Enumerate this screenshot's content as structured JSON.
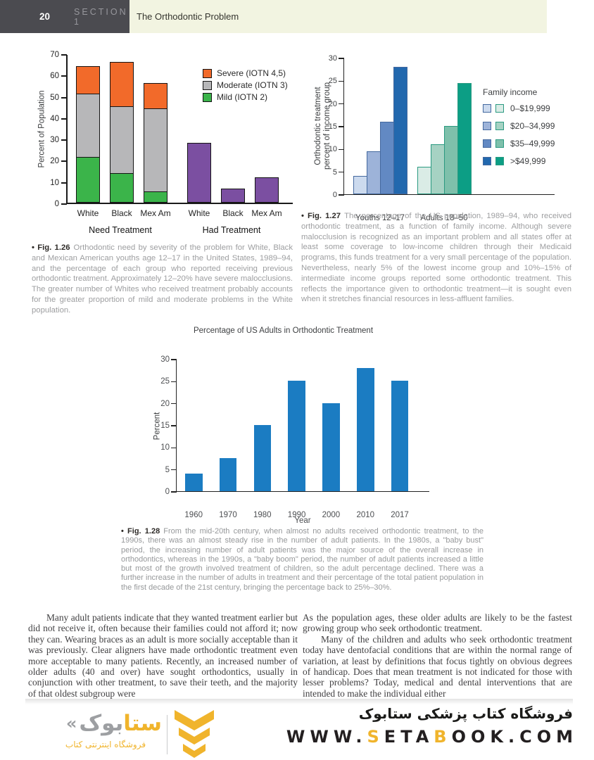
{
  "header": {
    "page_number": "20",
    "section_label": "SECTION 1",
    "section_title": "The Orthodontic Problem"
  },
  "chart_data": {
    "fig126": {
      "type": "bar",
      "subtype": "stacked",
      "ylabel": "Percent of Population",
      "ylim": [
        0,
        70
      ],
      "yticks": [
        0,
        10,
        20,
        30,
        40,
        50,
        60,
        70
      ],
      "categories": [
        "White",
        "Black",
        "Mex Am",
        "White",
        "Black",
        "Mex Am"
      ],
      "group_labels": [
        "Need Treatment",
        "Had Treatment"
      ],
      "colors": {
        "severe": "#f26a2a",
        "moderate": "#b7b7b9",
        "mild": "#3bb44a",
        "had_treatment": "#7b4fa1",
        "outline": "#141414"
      },
      "legend": [
        {
          "label": "Severe (IOTN 4,5)",
          "color": "#f26a2a"
        },
        {
          "label": "Moderate (IOTN 3)",
          "color": "#b7b7b9"
        },
        {
          "label": "Mild (IOTN 2)",
          "color": "#3bb44a"
        }
      ],
      "bars": [
        {
          "category": "White",
          "segments": [
            {
              "value": 21,
              "color": "#3bb44a"
            },
            {
              "value": 30,
              "color": "#b7b7b9"
            },
            {
              "value": 13,
              "color": "#f26a2a"
            }
          ]
        },
        {
          "category": "Black",
          "segments": [
            {
              "value": 13.5,
              "color": "#3bb44a"
            },
            {
              "value": 31.5,
              "color": "#b7b7b9"
            },
            {
              "value": 21,
              "color": "#f26a2a"
            }
          ]
        },
        {
          "category": "Mex Am",
          "segments": [
            {
              "value": 5,
              "color": "#3bb44a"
            },
            {
              "value": 39,
              "color": "#b7b7b9"
            },
            {
              "value": 12,
              "color": "#f26a2a"
            }
          ]
        },
        {
          "category": "White",
          "segments": [
            {
              "value": 28,
              "color": "#7b4fa1"
            }
          ]
        },
        {
          "category": "Black",
          "segments": [
            {
              "value": 6.5,
              "color": "#7b4fa1"
            }
          ]
        },
        {
          "category": "Mex Am",
          "segments": [
            {
              "value": 12,
              "color": "#7b4fa1"
            }
          ]
        }
      ]
    },
    "fig127": {
      "type": "bar",
      "subtype": "grouped",
      "ylabel_line1": "Orthodontic treatment",
      "ylabel_line2": "percent of income group",
      "ylim": [
        0,
        30
      ],
      "yticks": [
        0,
        5,
        10,
        15,
        20,
        25,
        30
      ],
      "legend_title": "Family income",
      "income_labels": [
        "0–$19,999",
        "$20–34,999",
        "$35–49,999",
        ">$49,999"
      ],
      "groups": [
        {
          "label": "Youths 12–17",
          "values": [
            4,
            9.5,
            16,
            28
          ],
          "colors": [
            "#ccdaee",
            "#9db3d9",
            "#6289c3",
            "#2268ae"
          ],
          "outline": "#44699f"
        },
        {
          "label": "Adults 18–50",
          "values": [
            6,
            11,
            15,
            24.5
          ],
          "colors": [
            "#daece6",
            "#a6d2c3",
            "#7ec0ab",
            "#0c9e85"
          ],
          "outline": "#2a9a81"
        }
      ]
    },
    "fig128": {
      "type": "bar",
      "title": "Percentage of US Adults in Orthodontic Treatment",
      "xlabel": "Year",
      "ylabel": "Percent",
      "ylim": [
        0,
        30
      ],
      "yticks": [
        0,
        5,
        10,
        15,
        20,
        25,
        30
      ],
      "categories": [
        "1960",
        "1970",
        "1980",
        "1990",
        "2000",
        "2010",
        "2017"
      ],
      "values": [
        4,
        7.5,
        15,
        25,
        20,
        28,
        25
      ],
      "bar_color": "#1b7cc2"
    }
  },
  "captions": {
    "fig126": {
      "label": "• Fig. 1.26",
      "text": "Orthodontic need by severity of the problem for White, Black and Mexican American youths age 12–17 in the United States, 1989–94, and the percentage of each group who reported receiving previous orthodontic treatment. Approximately 12–20% have severe malocclusions. The greater number of Whites who received treatment probably accounts for the greater proportion of mild and moderate problems in the White population."
    },
    "fig127": {
      "label": "• Fig. 1.27",
      "text": "The percentage of the US population, 1989–94, who received orthodontic treatment, as a function of family income. Although severe malocclusion is recognized as an important problem and all states offer at least some coverage to low-income children through their Medicaid programs, this funds treatment for a very small percentage of the population. Nevertheless, nearly 5% of the lowest income group and 10%–15% of intermediate income groups reported some orthodontic treatment. This reflects the importance given to orthodontic treatment—it is sought even when it stretches financial resources in less-affluent families."
    },
    "fig128": {
      "label": "• Fig. 1.28",
      "text": "From the mid-20th century, when almost no adults received orthodontic treatment, to the 1990s, there was an almost steady rise in the number of adult patients. In the 1980s, a \"baby bust\" period, the increasing number of adult patients was the major source of the overall increase in orthodontics, whereas in the 1990s, a \"baby boom\" period, the number of adult patients increased a little but most of the growth involved treatment of children, so the adult percentage declined. There was a further increase in the number of adults in treatment and their percentage of the total patient population in the first decade of the 21st century, bringing the percentage back to 25%–30%."
    }
  },
  "body": {
    "left_paragraph": "Many adult patients indicate that they wanted treatment earlier but did not receive it, often because their families could not afford it; now they can. Wearing braces as an adult is more socially acceptable than it was previously. Clear aligners have made orthodontic treatment even more acceptable to many patients. Recently, an increased number of older adults (40 and over) have sought orthodontics, usually in conjunction with other treatment, to save their teeth, and the majority of that oldest subgroup were",
    "right_paragraph_1": "As the population ages, these older adults are likely to be the fastest growing group who seek orthodontic treatment.",
    "right_paragraph_2": "Many of the children and adults who seek orthodontic treatment today have dentofacial conditions that are within the normal range of variation, at least by definitions that focus tightly on obvious degrees of handicap. Does that mean treatment is not indicated for those with lesser problems? Today, medical and dental interventions that are intended to make the individual either"
  },
  "footer": {
    "logo": {
      "wordmark_yellow": "ستا",
      "wordmark_gray": "بوک",
      "guillemet": "«",
      "subtitle": "فروشگاه اینترنتی کتاب",
      "accent_color": "#f0b42c",
      "gray_color": "#9d9fa2"
    },
    "tagline": "فروشگاه کتاب پزشکی ستابوک",
    "website_segments": [
      {
        "text": "WWW.",
        "color": "#231f20"
      },
      {
        "text": "S",
        "color": "#f0b42c"
      },
      {
        "text": "ETA",
        "color": "#231f20"
      },
      {
        "text": "B",
        "color": "#f0b42c"
      },
      {
        "text": "OOK.COM",
        "color": "#231f20"
      }
    ]
  }
}
